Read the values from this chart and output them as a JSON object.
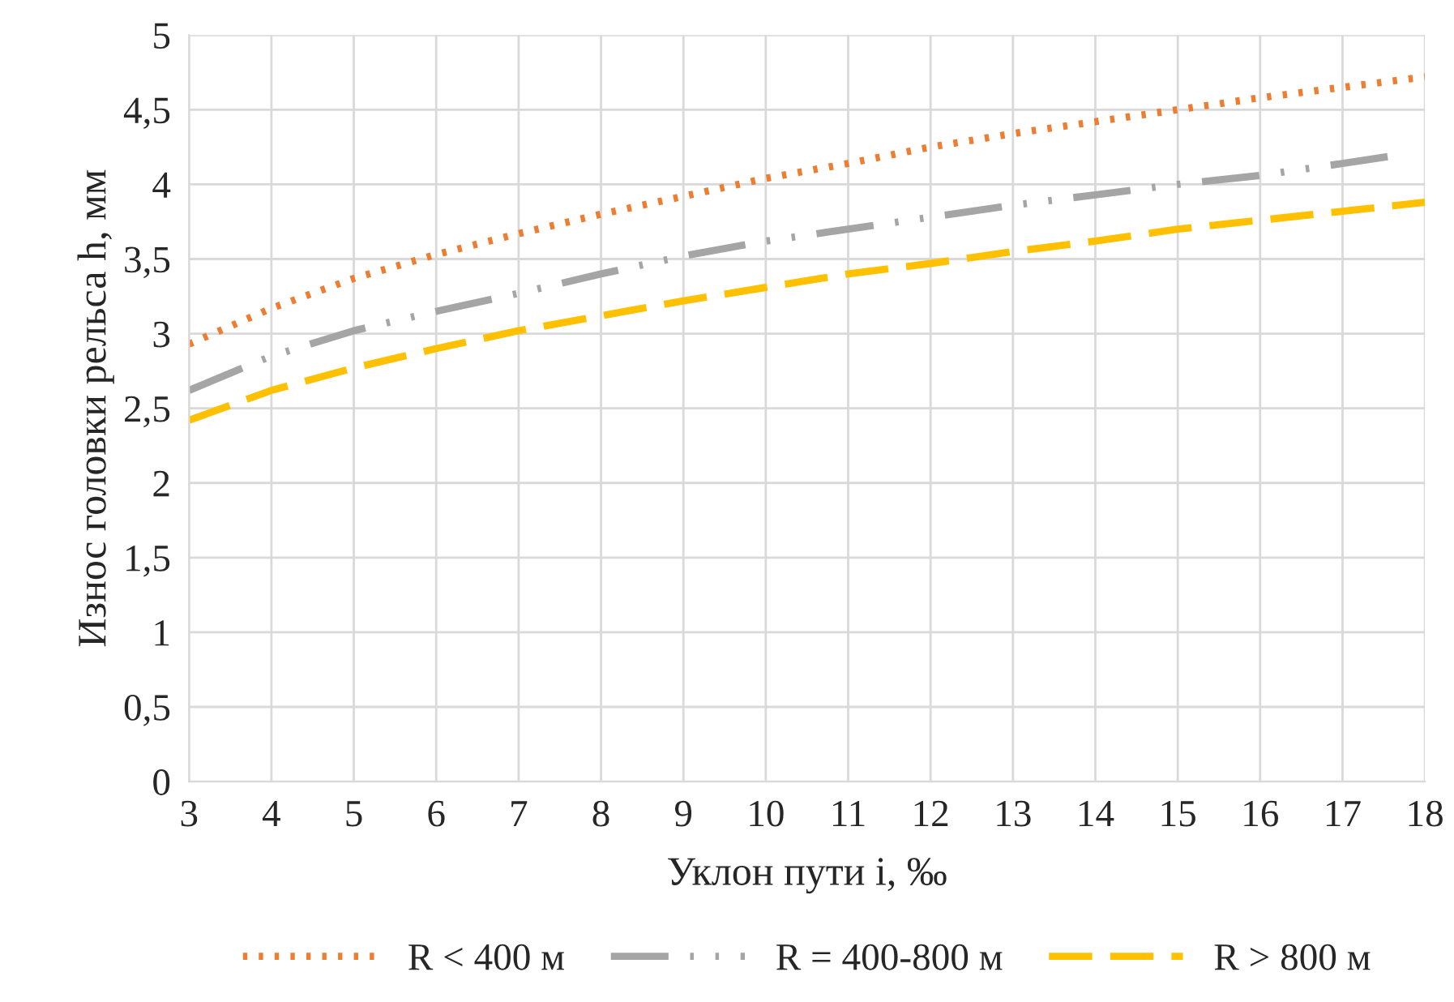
{
  "chart_data": {
    "type": "line",
    "xlabel": "Уклон пути i, ‰",
    "ylabel": "Износ головки рельса h, мм",
    "xlim": [
      3,
      18
    ],
    "xticks": [
      3,
      4,
      5,
      6,
      7,
      8,
      9,
      10,
      11,
      12,
      13,
      14,
      15,
      16,
      17,
      18
    ],
    "ylim": [
      0,
      5
    ],
    "yticks": [
      0,
      {
        "value": 0.5,
        "label": "0,5"
      },
      1,
      {
        "value": 1.5,
        "label": "1,5"
      },
      2,
      {
        "value": 2.5,
        "label": "2,5"
      },
      3,
      {
        "value": 3.5,
        "label": "3,5"
      },
      4,
      {
        "value": 4.5,
        "label": "4,5"
      },
      5
    ],
    "grid": true,
    "legend": "bottom",
    "marker": "none",
    "series": [
      {
        "name": "R < 400 м",
        "color": "#ed7d31",
        "line_style": "dotted",
        "x": [
          3,
          4,
          5,
          6,
          7,
          8,
          9,
          10,
          11,
          12,
          13,
          14,
          15,
          16,
          17,
          18
        ],
        "values": [
          2.93,
          3.17,
          3.37,
          3.53,
          3.67,
          3.8,
          3.92,
          4.04,
          4.14,
          4.25,
          4.34,
          4.42,
          4.5,
          4.58,
          4.65,
          4.72
        ]
      },
      {
        "name": "R = 400-800 м",
        "color": "#a5a5a5",
        "line_style": "dashdot",
        "x": [
          3,
          4,
          5,
          6,
          7,
          8,
          9,
          10,
          11,
          12,
          13,
          14,
          15,
          16,
          17,
          17.6
        ],
        "values": [
          2.62,
          2.85,
          3.02,
          3.15,
          3.27,
          3.4,
          3.52,
          3.62,
          3.7,
          3.78,
          3.86,
          3.93,
          4.0,
          4.06,
          4.14,
          4.19
        ]
      },
      {
        "name": "R > 800 м",
        "color": "#ffc000",
        "line_style": "dashed",
        "x": [
          3,
          4,
          5,
          6,
          7,
          8,
          9,
          10,
          11,
          12,
          13,
          14,
          15,
          16,
          17,
          18
        ],
        "values": [
          2.42,
          2.62,
          2.77,
          2.9,
          3.02,
          3.12,
          3.22,
          3.31,
          3.4,
          3.47,
          3.55,
          3.62,
          3.7,
          3.76,
          3.82,
          3.88
        ]
      }
    ]
  }
}
